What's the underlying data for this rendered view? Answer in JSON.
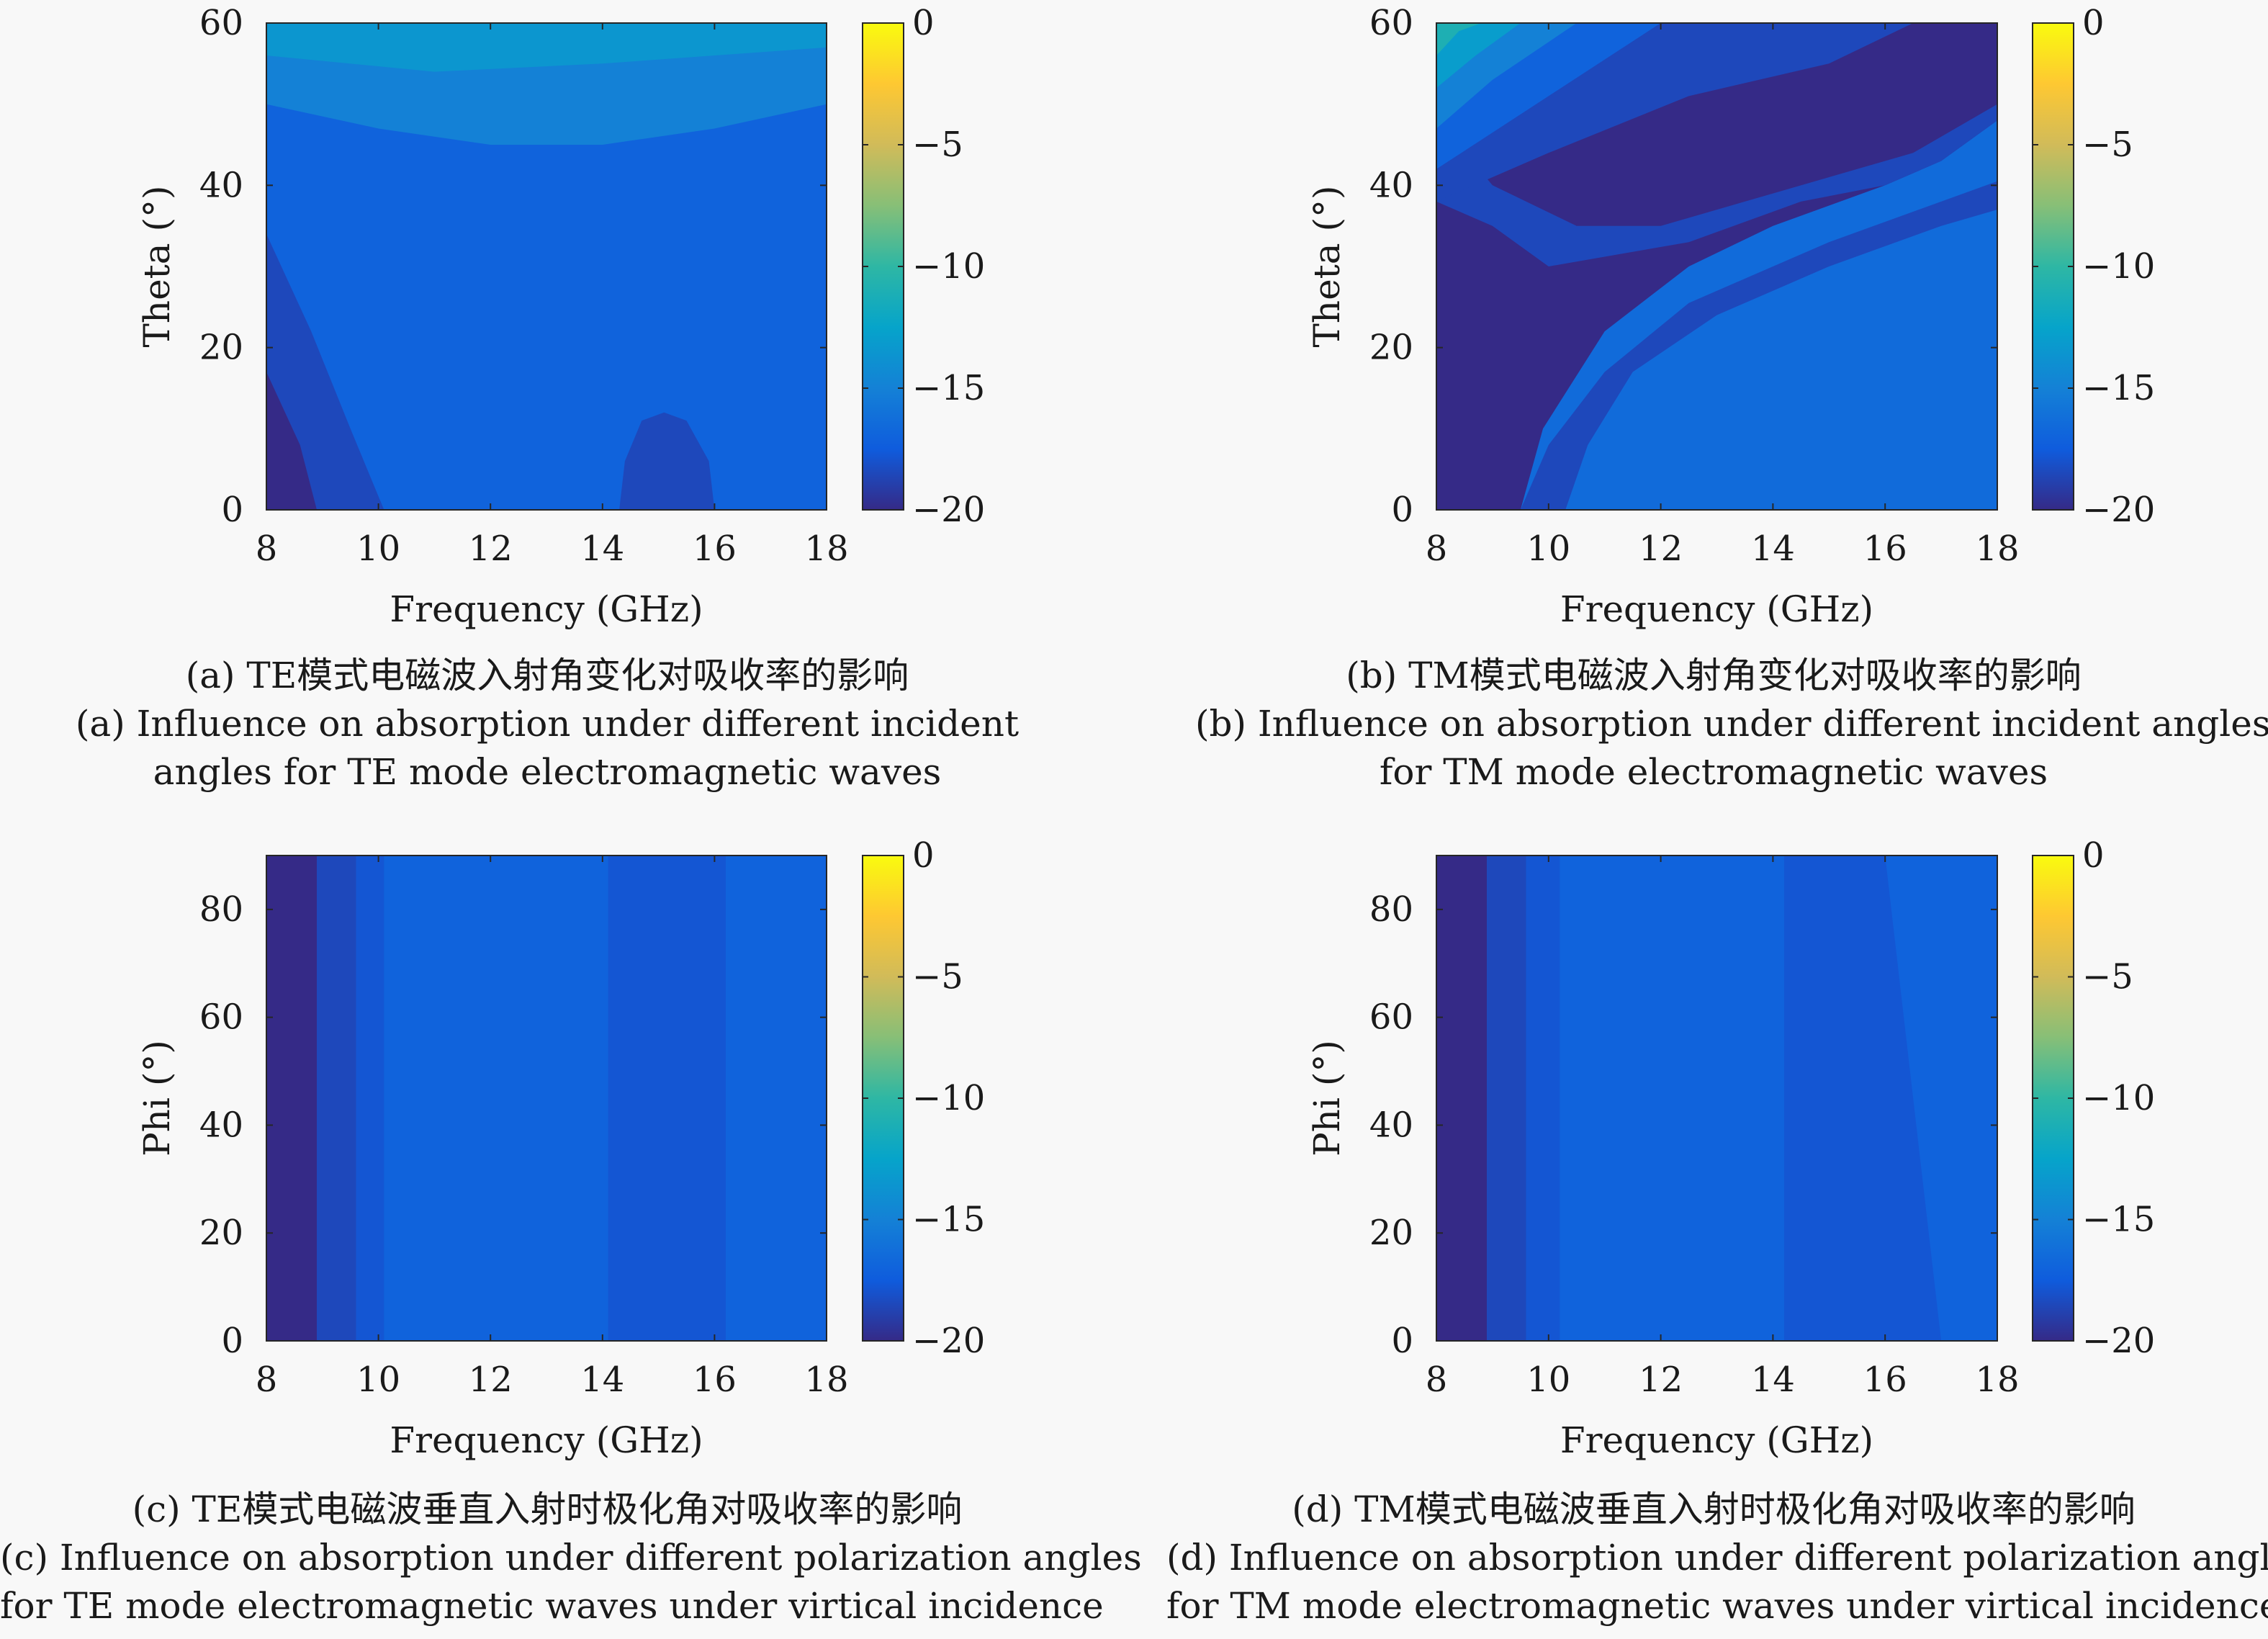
{
  "colorscale": [
    "#352a87",
    "#0f5cdd",
    "#1481d6",
    "#06a4ca",
    "#2eb7a4",
    "#87bf77",
    "#d1bb59",
    "#fec832",
    "#f9fb0e"
  ],
  "chart_data": [
    {
      "type": "heatmap",
      "xlabel": "Frequency (GHz)",
      "ylabel": "Theta (°)",
      "xlim": [
        8,
        18
      ],
      "ylim": [
        0,
        60
      ],
      "x_ticks": [
        "8",
        "10",
        "12",
        "14",
        "16",
        "18"
      ],
      "y_ticks": [
        "0",
        "20",
        "40",
        "60"
      ],
      "clim": [
        -20,
        0
      ],
      "colorbar_ticks": [
        "0",
        "−5",
        "−10",
        "−15",
        "−20"
      ],
      "regions": [
        {
          "value": -17,
          "polygon": [
            [
              8,
              0
            ],
            [
              18,
              0
            ],
            [
              18,
              60
            ],
            [
              8,
              60
            ]
          ]
        },
        {
          "value": -15,
          "polygon": [
            [
              8,
              60
            ],
            [
              18,
              60
            ],
            [
              18,
              50
            ],
            [
              16,
              47
            ],
            [
              14,
              45
            ],
            [
              12,
              45
            ],
            [
              10,
              47
            ],
            [
              8,
              50
            ]
          ]
        },
        {
          "value": -13.5,
          "polygon": [
            [
              8,
              60
            ],
            [
              18,
              60
            ],
            [
              18,
              57
            ],
            [
              14,
              55
            ],
            [
              11,
              54
            ],
            [
              8,
              56
            ]
          ]
        },
        {
          "value": -18.5,
          "polygon": [
            [
              8,
              34
            ],
            [
              8,
              0
            ],
            [
              10.1,
              0
            ],
            [
              9.5,
              10
            ],
            [
              8.8,
              22
            ]
          ]
        },
        {
          "value": -18.5,
          "polygon": [
            [
              14.3,
              0
            ],
            [
              16,
              0
            ],
            [
              15.9,
              6
            ],
            [
              15.5,
              11
            ],
            [
              15.1,
              12
            ],
            [
              14.7,
              11
            ],
            [
              14.4,
              6
            ]
          ]
        },
        {
          "value": -20,
          "polygon": [
            [
              8,
              17
            ],
            [
              8,
              0
            ],
            [
              8.9,
              0
            ],
            [
              8.6,
              8
            ]
          ]
        }
      ]
    },
    {
      "type": "heatmap",
      "xlabel": "Frequency (GHz)",
      "ylabel": "Theta (°)",
      "xlim": [
        8,
        18
      ],
      "ylim": [
        0,
        60
      ],
      "x_ticks": [
        "8",
        "10",
        "12",
        "14",
        "16",
        "18"
      ],
      "y_ticks": [
        "0",
        "20",
        "40",
        "60"
      ],
      "clim": [
        -20,
        0
      ],
      "colorbar_ticks": [
        "0",
        "−5",
        "−10",
        "−15",
        "−20"
      ],
      "regions": [
        {
          "value": -16.5,
          "polygon": [
            [
              8,
              0
            ],
            [
              18,
              0
            ],
            [
              18,
              60
            ],
            [
              8,
              60
            ]
          ]
        },
        {
          "value": -20,
          "polygon": [
            [
              8,
              0
            ],
            [
              9.5,
              0
            ],
            [
              9.9,
              10
            ],
            [
              11,
              22
            ],
            [
              12.5,
              30
            ],
            [
              14,
              35
            ],
            [
              16,
              40
            ],
            [
              17,
              43
            ],
            [
              18,
              48
            ],
            [
              18,
              60
            ],
            [
              10,
              60
            ],
            [
              8,
              45
            ]
          ]
        },
        {
          "value": -18.5,
          "polygon": [
            [
              9.5,
              0
            ],
            [
              10.3,
              0
            ],
            [
              10.7,
              8
            ],
            [
              11.5,
              17
            ],
            [
              13,
              24
            ],
            [
              15,
              30
            ],
            [
              17,
              35
            ],
            [
              18,
              37
            ],
            [
              18,
              40.5
            ],
            [
              17,
              38
            ],
            [
              15,
              33
            ],
            [
              12.5,
              25.5
            ],
            [
              11,
              17
            ],
            [
              10,
              8
            ]
          ]
        },
        {
          "value": -18.5,
          "polygon": [
            [
              18,
              48
            ],
            [
              17,
              43
            ],
            [
              16,
              40
            ],
            [
              14.5,
              38
            ],
            [
              12.5,
              33
            ],
            [
              10,
              30
            ],
            [
              9,
              35
            ],
            [
              8,
              38
            ],
            [
              8,
              45
            ],
            [
              9,
              52
            ],
            [
              10,
              60
            ],
            [
              18,
              60
            ]
          ]
        },
        {
          "value": -20,
          "polygon": [
            [
              18,
              50
            ],
            [
              16.5,
              44
            ],
            [
              14,
              39
            ],
            [
              12,
              35
            ],
            [
              10.5,
              35
            ],
            [
              9,
              40
            ],
            [
              8.4,
              45
            ],
            [
              8.6,
              53
            ],
            [
              10.5,
              60
            ],
            [
              18,
              60
            ]
          ]
        },
        {
          "value": -18.5,
          "polygon": [
            [
              8,
              38
            ],
            [
              10,
              44
            ],
            [
              12.5,
              51
            ],
            [
              15,
              55
            ],
            [
              16.5,
              60
            ],
            [
              11.5,
              60
            ],
            [
              9,
              52
            ],
            [
              8,
              47
            ]
          ]
        },
        {
          "value": -17,
          "polygon": [
            [
              8,
              42
            ],
            [
              10,
              51
            ],
            [
              12,
              60
            ],
            [
              8,
              60
            ]
          ]
        },
        {
          "value": -15,
          "polygon": [
            [
              8,
              47
            ],
            [
              9,
              53
            ],
            [
              10.5,
              60
            ],
            [
              8,
              60
            ]
          ]
        },
        {
          "value": -13,
          "polygon": [
            [
              8,
              52
            ],
            [
              8.7,
              56
            ],
            [
              9.5,
              60
            ],
            [
              8,
              60
            ]
          ]
        },
        {
          "value": -11,
          "polygon": [
            [
              8,
              56
            ],
            [
              8.4,
              59
            ],
            [
              8.8,
              60
            ],
            [
              8,
              60
            ]
          ]
        }
      ]
    },
    {
      "type": "heatmap",
      "xlabel": "Frequency (GHz)",
      "ylabel": "Phi (°)",
      "xlim": [
        8,
        18
      ],
      "ylim": [
        0,
        90
      ],
      "x_ticks": [
        "8",
        "10",
        "12",
        "14",
        "16",
        "18"
      ],
      "y_ticks": [
        "0",
        "20",
        "40",
        "60",
        "80"
      ],
      "clim": [
        -20,
        0
      ],
      "colorbar_ticks": [
        "0",
        "−5",
        "−10",
        "−15",
        "−20"
      ],
      "regions": [
        {
          "value": -17,
          "polygon": [
            [
              8,
              0
            ],
            [
              18,
              0
            ],
            [
              18,
              90
            ],
            [
              8,
              90
            ]
          ]
        },
        {
          "value": -20,
          "polygon": [
            [
              8,
              0
            ],
            [
              8.9,
              0
            ],
            [
              8.9,
              90
            ],
            [
              8,
              90
            ]
          ]
        },
        {
          "value": -18.5,
          "polygon": [
            [
              8.9,
              0
            ],
            [
              9.6,
              0
            ],
            [
              9.6,
              90
            ],
            [
              8.9,
              90
            ]
          ]
        },
        {
          "value": -17.8,
          "polygon": [
            [
              9.6,
              0
            ],
            [
              10.1,
              0
            ],
            [
              10.1,
              90
            ],
            [
              9.6,
              90
            ]
          ]
        },
        {
          "value": -17.8,
          "polygon": [
            [
              14.1,
              0
            ],
            [
              16.2,
              0
            ],
            [
              16.2,
              90
            ],
            [
              14.1,
              90
            ]
          ]
        }
      ]
    },
    {
      "type": "heatmap",
      "xlabel": "Frequency (GHz)",
      "ylabel": "Phi (°)",
      "xlim": [
        8,
        18
      ],
      "ylim": [
        0,
        90
      ],
      "x_ticks": [
        "8",
        "10",
        "12",
        "14",
        "16",
        "18"
      ],
      "y_ticks": [
        "0",
        "20",
        "40",
        "60",
        "80"
      ],
      "clim": [
        -20,
        0
      ],
      "colorbar_ticks": [
        "0",
        "−5",
        "−10",
        "−15",
        "−20"
      ],
      "regions": [
        {
          "value": -17,
          "polygon": [
            [
              8,
              0
            ],
            [
              18,
              0
            ],
            [
              18,
              90
            ],
            [
              8,
              90
            ]
          ]
        },
        {
          "value": -20,
          "polygon": [
            [
              8,
              0
            ],
            [
              8.9,
              0
            ],
            [
              8.9,
              90
            ],
            [
              8,
              90
            ]
          ]
        },
        {
          "value": -18.5,
          "polygon": [
            [
              8.9,
              0
            ],
            [
              9.6,
              0
            ],
            [
              9.6,
              90
            ],
            [
              8.9,
              90
            ]
          ]
        },
        {
          "value": -17.8,
          "polygon": [
            [
              9.6,
              0
            ],
            [
              10.2,
              0
            ],
            [
              10.2,
              90
            ],
            [
              9.6,
              90
            ]
          ]
        },
        {
          "value": -17.8,
          "polygon": [
            [
              14.2,
              0
            ],
            [
              17,
              0
            ],
            [
              16,
              90
            ],
            [
              14.2,
              90
            ]
          ]
        }
      ]
    }
  ],
  "captions": [
    {
      "zh": "(a) TE模式电磁波入射角变化对吸收率的影响",
      "en1": "(a) Influence on absorption under different incident",
      "en2": "angles for TE mode electromagnetic waves"
    },
    {
      "zh": "(b) TM模式电磁波入射角变化对吸收率的影响",
      "en1": "(b) Influence on absorption under different incident angles",
      "en2": "for TM mode electromagnetic waves"
    },
    {
      "zh": "(c) TE模式电磁波垂直入射时极化角对吸收率的影响",
      "en1": "(c) Influence on absorption under different polarization angles",
      "en2": "for TE mode electromagnetic waves under virtical incidence"
    },
    {
      "zh": "(d) TM模式电磁波垂直入射时极化角对吸收率的影响",
      "en1": "(d) Influence on absorption under different polarization angles",
      "en2": "for TM mode electromagnetic waves under virtical incidence"
    }
  ]
}
